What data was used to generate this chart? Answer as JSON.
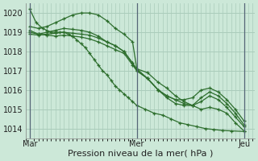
{
  "bg_color": "#cce8d8",
  "grid_color": "#aaccbb",
  "line_color": "#2d6e2d",
  "marker_color": "#2d6e2d",
  "xlabel": "Pression niveau de la mer( hPa )",
  "xlabel_fontsize": 8,
  "yticks": [
    1014,
    1015,
    1016,
    1017,
    1018,
    1019,
    1020
  ],
  "ylim": [
    1013.5,
    1020.5
  ],
  "xtick_labels": [
    "Mar",
    "Mer",
    "Jeu"
  ],
  "xtick_positions": [
    0.0,
    0.5,
    1.0
  ],
  "xlim": [
    -0.02,
    1.05
  ],
  "vline_positions": [
    0.0,
    0.5,
    1.0
  ],
  "series": [
    {
      "x": [
        0.0,
        0.03,
        0.06,
        0.08,
        0.1,
        0.12,
        0.14,
        0.16,
        0.18,
        0.2,
        0.22,
        0.24,
        0.26,
        0.28,
        0.3,
        0.32,
        0.34,
        0.36,
        0.38,
        0.4,
        0.42,
        0.44,
        0.46,
        0.48,
        0.5,
        0.54,
        0.58,
        0.62,
        0.66,
        0.7,
        0.74,
        0.78,
        0.82,
        0.86,
        0.9,
        0.94,
        1.0
      ],
      "y": [
        1020.2,
        1019.5,
        1019.2,
        1019.1,
        1019.0,
        1019.0,
        1019.0,
        1019.0,
        1018.9,
        1018.8,
        1018.6,
        1018.4,
        1018.2,
        1017.9,
        1017.6,
        1017.3,
        1017.0,
        1016.8,
        1016.5,
        1016.2,
        1016.0,
        1015.8,
        1015.6,
        1015.4,
        1015.2,
        1015.0,
        1014.8,
        1014.7,
        1014.5,
        1014.3,
        1014.2,
        1014.1,
        1014.0,
        1013.95,
        1013.9,
        1013.88,
        1013.85
      ]
    },
    {
      "x": [
        0.0,
        0.04,
        0.08,
        0.12,
        0.16,
        0.2,
        0.24,
        0.28,
        0.32,
        0.36,
        0.4,
        0.44,
        0.48,
        0.5,
        0.55,
        0.6,
        0.64,
        0.68,
        0.72,
        0.76,
        0.8,
        0.84,
        0.88,
        0.92,
        0.96,
        1.0
      ],
      "y": [
        1019.3,
        1019.2,
        1019.3,
        1019.5,
        1019.7,
        1019.9,
        1020.0,
        1020.0,
        1019.9,
        1019.6,
        1019.2,
        1018.9,
        1018.5,
        1017.1,
        1016.9,
        1016.4,
        1016.1,
        1015.7,
        1015.4,
        1015.2,
        1015.0,
        1015.1,
        1015.0,
        1014.8,
        1014.3,
        1013.88
      ]
    },
    {
      "x": [
        0.0,
        0.04,
        0.08,
        0.12,
        0.16,
        0.2,
        0.24,
        0.28,
        0.32,
        0.36,
        0.4,
        0.44,
        0.48,
        0.5,
        0.55,
        0.6,
        0.64,
        0.68,
        0.72,
        0.76,
        0.8,
        0.84,
        0.88,
        0.92,
        0.96,
        1.0
      ],
      "y": [
        1019.0,
        1018.9,
        1019.0,
        1019.1,
        1019.2,
        1019.15,
        1019.1,
        1019.0,
        1018.8,
        1018.5,
        1018.3,
        1018.0,
        1017.4,
        1017.1,
        1016.6,
        1016.0,
        1015.6,
        1015.3,
        1015.2,
        1015.2,
        1015.6,
        1015.9,
        1015.7,
        1015.3,
        1014.8,
        1014.2
      ]
    },
    {
      "x": [
        0.0,
        0.04,
        0.08,
        0.12,
        0.16,
        0.2,
        0.24,
        0.28,
        0.32,
        0.36,
        0.4,
        0.44,
        0.48,
        0.5,
        0.55,
        0.6,
        0.64,
        0.68,
        0.72,
        0.76,
        0.8,
        0.84,
        0.88,
        0.92,
        0.96,
        1.0
      ],
      "y": [
        1018.9,
        1018.85,
        1018.9,
        1018.95,
        1019.0,
        1018.95,
        1018.9,
        1018.85,
        1018.7,
        1018.5,
        1018.3,
        1018.0,
        1017.4,
        1017.0,
        1016.6,
        1016.0,
        1015.7,
        1015.5,
        1015.5,
        1015.6,
        1016.0,
        1016.1,
        1015.9,
        1015.5,
        1015.0,
        1014.4
      ]
    },
    {
      "x": [
        0.0,
        0.04,
        0.08,
        0.12,
        0.16,
        0.2,
        0.24,
        0.28,
        0.32,
        0.36,
        0.4,
        0.44,
        0.48,
        0.5,
        0.55,
        0.6,
        0.64,
        0.68,
        0.72,
        0.76,
        0.8,
        0.84,
        0.88,
        0.92,
        0.96,
        1.0
      ],
      "y": [
        1019.1,
        1018.9,
        1018.85,
        1018.8,
        1018.85,
        1018.8,
        1018.75,
        1018.65,
        1018.5,
        1018.3,
        1018.1,
        1017.9,
        1017.3,
        1017.0,
        1016.6,
        1016.0,
        1015.7,
        1015.5,
        1015.3,
        1015.2,
        1015.4,
        1015.7,
        1015.5,
        1015.1,
        1014.6,
        1014.1
      ]
    }
  ]
}
